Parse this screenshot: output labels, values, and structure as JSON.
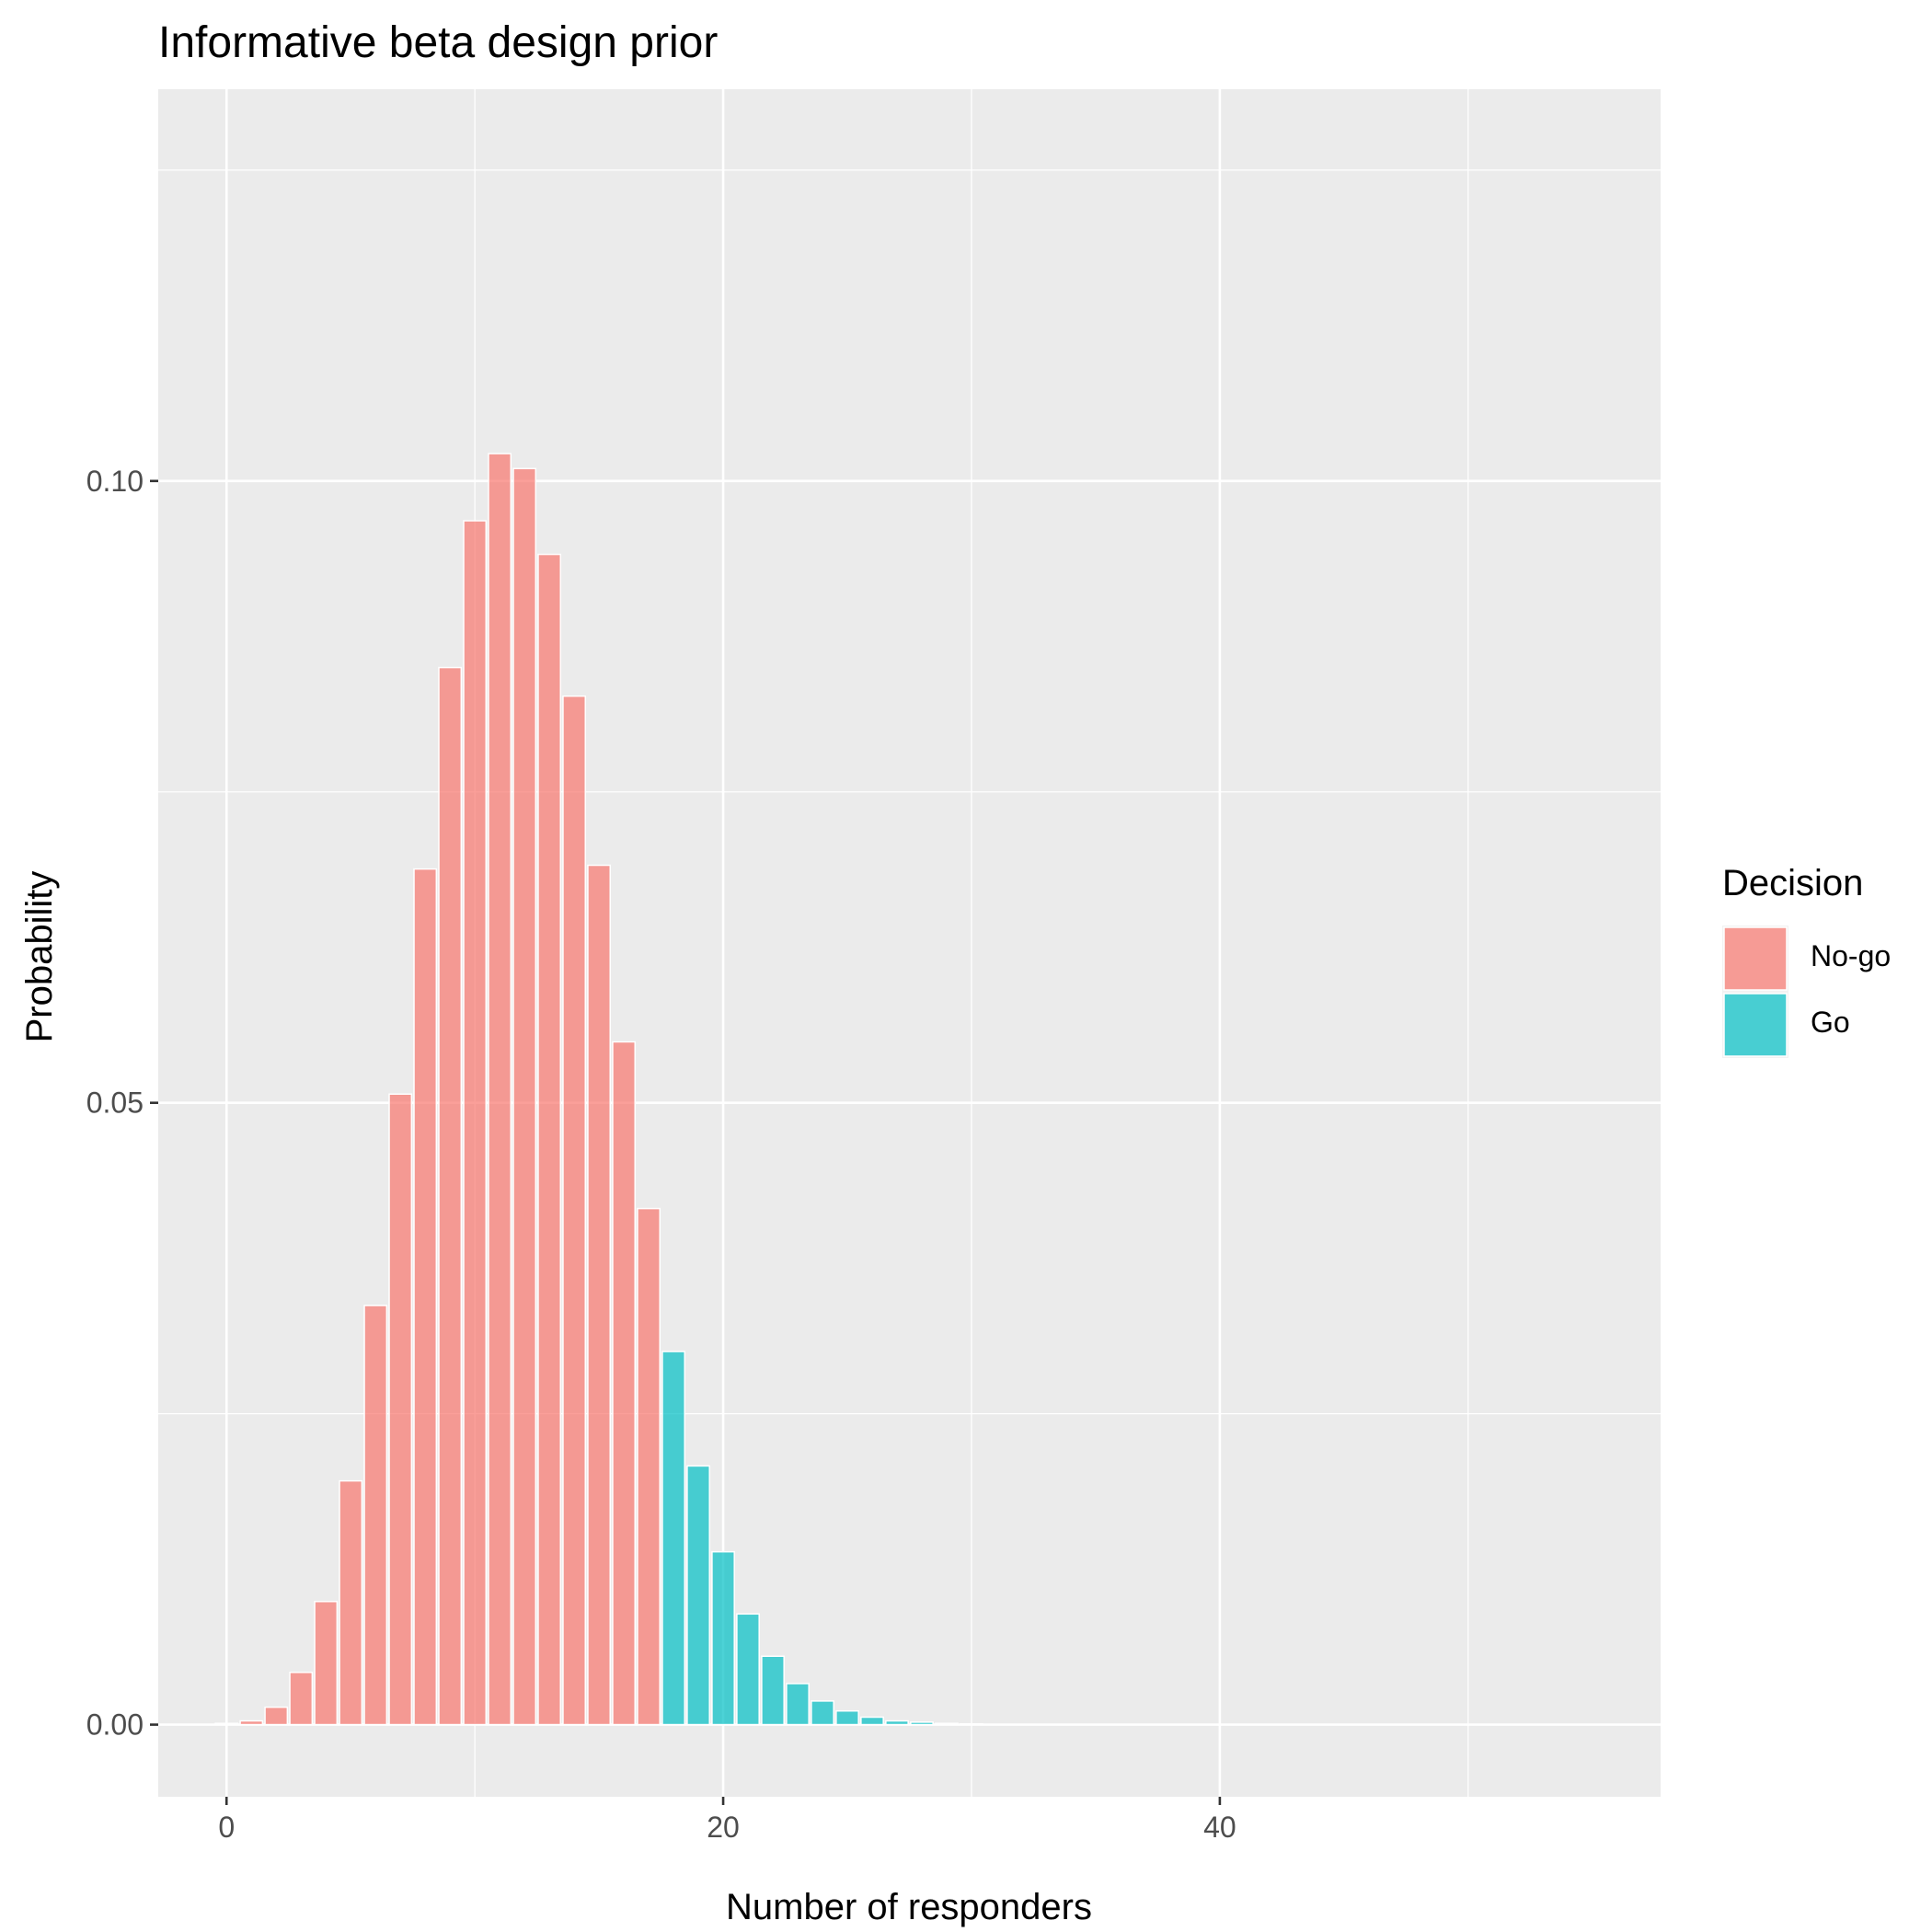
{
  "chart_data": {
    "type": "bar",
    "title": "Informative beta design prior",
    "xlabel": "Number of responders",
    "ylabel": "Probability",
    "xlim": [
      -2.75,
      57.75
    ],
    "ylim": [
      -0.0058,
      0.1315
    ],
    "x_ticks": [
      0,
      20,
      40
    ],
    "x_tick_labels": [
      "0",
      "20",
      "40"
    ],
    "y_ticks": [
      0.0,
      0.05,
      0.1
    ],
    "y_tick_labels": [
      "0.00",
      "0.05",
      "0.10"
    ],
    "grid": true,
    "legend": {
      "title": "Decision",
      "position": "right",
      "entries": [
        {
          "label": "No-go",
          "color": "#F8766D"
        },
        {
          "label": "Go",
          "color": "#00BFC4"
        }
      ]
    },
    "series": [
      {
        "name": "No-go",
        "color": "#F8766D",
        "x": [
          0,
          1,
          2,
          3,
          4,
          5,
          6,
          7,
          8,
          9,
          10,
          11,
          12,
          13,
          14,
          15,
          16,
          17
        ],
        "values": [
          0.0001,
          0.0003,
          0.0014,
          0.0042,
          0.0099,
          0.0196,
          0.0337,
          0.0507,
          0.0688,
          0.085,
          0.0968,
          0.1022,
          0.101,
          0.0941,
          0.0827,
          0.0691,
          0.0549,
          0.0415
        ]
      },
      {
        "name": "Go",
        "color": "#00BFC4",
        "x": [
          18,
          19,
          20,
          21,
          22,
          23,
          24,
          25,
          26,
          27,
          28,
          29,
          30
        ],
        "values": [
          0.03,
          0.0208,
          0.0139,
          0.0089,
          0.0055,
          0.0033,
          0.0019,
          0.0011,
          0.0006,
          0.0003,
          0.0002,
          0.0001,
          5e-05
        ]
      }
    ]
  }
}
